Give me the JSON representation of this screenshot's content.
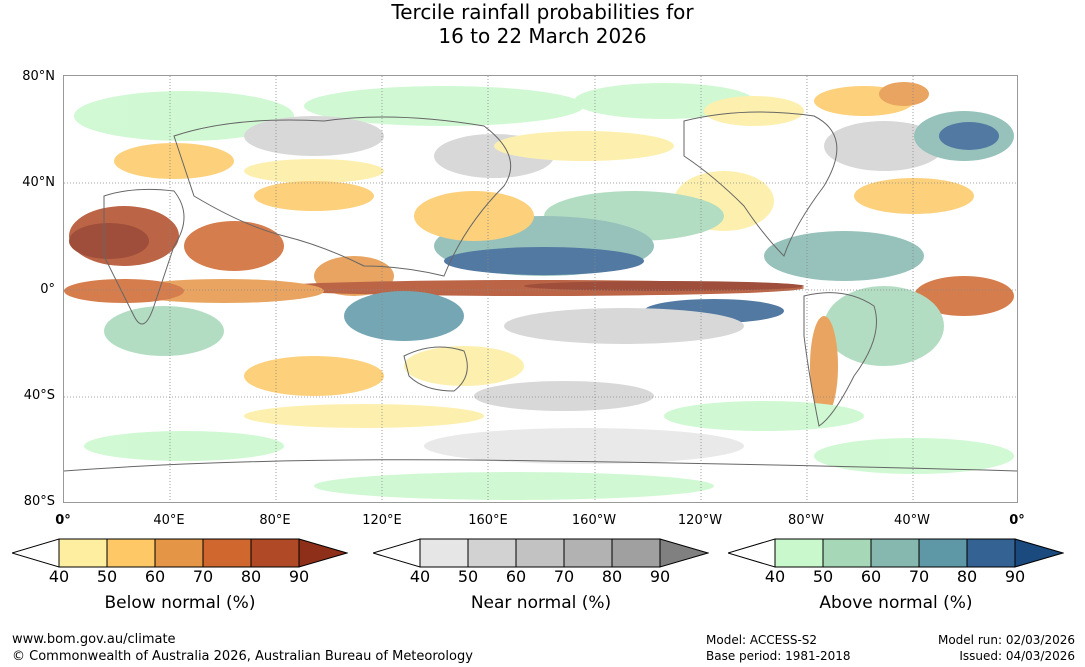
{
  "title": {
    "line1": "Tercile rainfall probabilities for",
    "line2": "16 to 22 March 2026"
  },
  "map": {
    "lat_labels": [
      "80°N",
      "40°N",
      "0°",
      "40°S",
      "80°S"
    ],
    "lon_labels": [
      "0°",
      "40°E",
      "80°E",
      "120°E",
      "160°E",
      "160°W",
      "120°W",
      "80°W",
      "40°W",
      "0°"
    ]
  },
  "legends": [
    {
      "title": "Below normal (%)",
      "ticks": [
        "40",
        "50",
        "60",
        "70",
        "80",
        "90"
      ],
      "colors": [
        "#ffffff",
        "#fdeea0",
        "#fdc865",
        "#e49545",
        "#d0672f",
        "#b04a26",
        "#8e3019"
      ]
    },
    {
      "title": "Near normal (%)",
      "ticks": [
        "40",
        "50",
        "60",
        "70",
        "80",
        "90"
      ],
      "colors": [
        "#ffffff",
        "#e6e6e6",
        "#d2d2d2",
        "#c2c2c2",
        "#b2b2b2",
        "#a0a0a0",
        "#808080"
      ]
    },
    {
      "title": "Above normal (%)",
      "ticks": [
        "40",
        "50",
        "60",
        "70",
        "80",
        "90"
      ],
      "colors": [
        "#ffffff",
        "#c8f8cc",
        "#a6d8b8",
        "#86b8b0",
        "#5e97a6",
        "#346292",
        "#1a4a7e"
      ]
    }
  ],
  "footer": {
    "website": "www.bom.gov.au/climate",
    "copyright": "© Commonwealth of Australia 2026, Australian Bureau of Meteorology",
    "model": "Model: ACCESS-S2",
    "base_period": "Base period: 1981-2018",
    "model_run": "Model run: 02/03/2026",
    "issued": "Issued: 04/03/2026"
  }
}
